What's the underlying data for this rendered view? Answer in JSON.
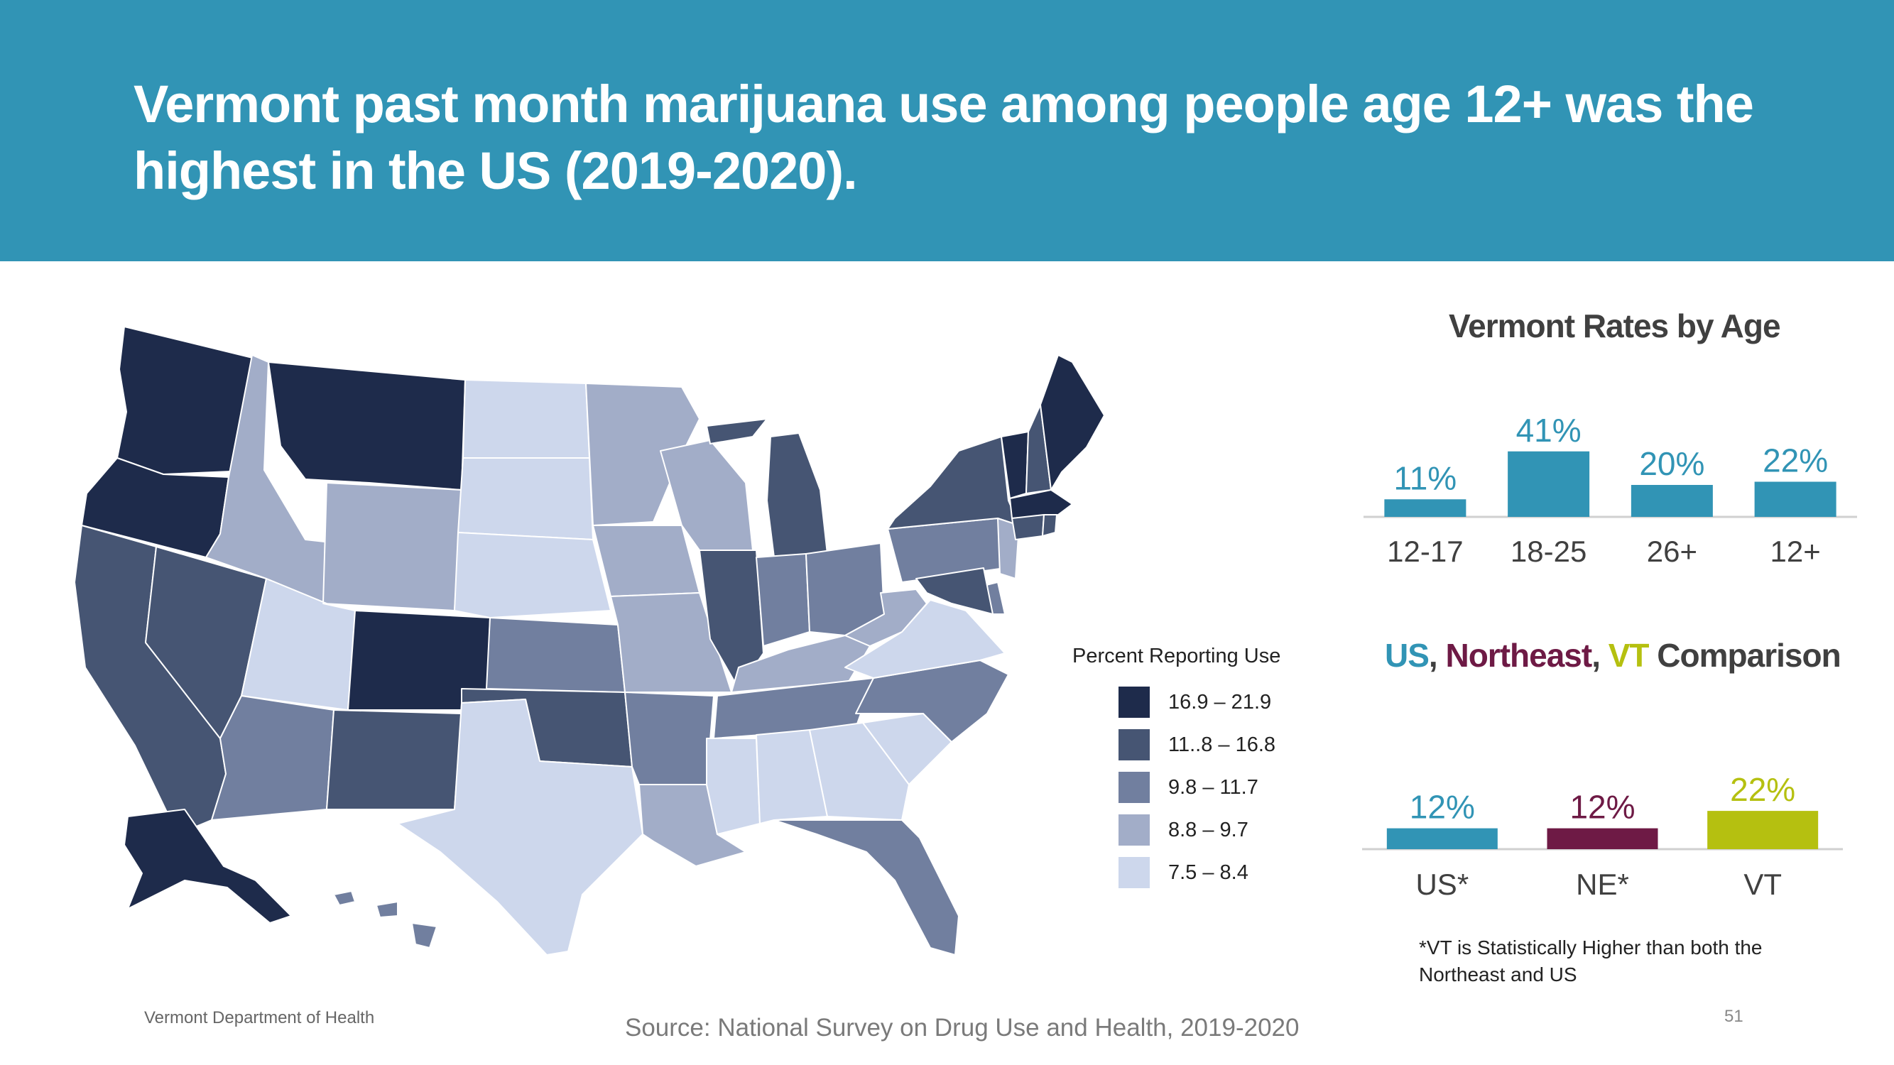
{
  "slide": {
    "title": "Vermont past month marijuana use among people age 12+ was the highest in the US (2019-2020).",
    "footer_left": "Vermont Department of Health",
    "footer_source": "Source: National Survey on Drug Use and Health, 2019-2020",
    "page_number": "51",
    "note": "*VT is Statistically Higher than both the Northeast and US"
  },
  "colors": {
    "header": "#3194b5",
    "bar_blue": "#3194b5",
    "northeast": "#6e1a45",
    "vt": "#b5c010",
    "bin1": "#1e2b4b",
    "bin2": "#465573",
    "bin3": "#717f9f",
    "bin4": "#a2adc8",
    "bin5": "#cdd7ec"
  },
  "legend": {
    "title": "Percent Reporting  Use",
    "items": [
      {
        "label": "16.9 – 21.9",
        "color": "#1e2b4b"
      },
      {
        "label": "11..8 – 16.8",
        "color": "#465573"
      },
      {
        "label": "9.8 – 11.7",
        "color": "#717f9f"
      },
      {
        "label": "8.8 – 9.7",
        "color": "#a2adc8"
      },
      {
        "label": "7.5 – 8.4",
        "color": "#cdd7ec"
      }
    ]
  },
  "chart_data": [
    {
      "type": "bar",
      "title": "Vermont Rates by Age",
      "categories": [
        "12-17",
        "18-25",
        "26+",
        "12+"
      ],
      "values": [
        11,
        41,
        20,
        22
      ],
      "data_labels": [
        "11%",
        "41%",
        "20%",
        "22%"
      ],
      "colors": [
        "#3194b5",
        "#3194b5",
        "#3194b5",
        "#3194b5"
      ]
    },
    {
      "type": "bar",
      "title_parts": [
        {
          "text": "US",
          "color": "#3194b5"
        },
        {
          "text": ", ",
          "color": "#404040"
        },
        {
          "text": "Northeast",
          "color": "#6e1a45"
        },
        {
          "text": ", ",
          "color": "#404040"
        },
        {
          "text": "VT",
          "color": "#b5c010"
        },
        {
          "text": " Comparison",
          "color": "#404040"
        }
      ],
      "categories": [
        "US*",
        "NE*",
        "VT"
      ],
      "values": [
        12,
        12,
        22
      ],
      "data_labels": [
        "12%",
        "12%",
        "22%"
      ],
      "colors": [
        "#3194b5",
        "#6e1a45",
        "#b5c010"
      ]
    },
    {
      "type": "choropleth",
      "regions": [
        {
          "state": "WA",
          "bin": 1
        },
        {
          "state": "OR",
          "bin": 1
        },
        {
          "state": "CA",
          "bin": 2
        },
        {
          "state": "NV",
          "bin": 2
        },
        {
          "state": "ID",
          "bin": 4
        },
        {
          "state": "MT",
          "bin": 1
        },
        {
          "state": "WY",
          "bin": 4
        },
        {
          "state": "UT",
          "bin": 5
        },
        {
          "state": "CO",
          "bin": 1
        },
        {
          "state": "AZ",
          "bin": 3
        },
        {
          "state": "NM",
          "bin": 2
        },
        {
          "state": "ND",
          "bin": 5
        },
        {
          "state": "SD",
          "bin": 5
        },
        {
          "state": "NE",
          "bin": 5
        },
        {
          "state": "KS",
          "bin": 3
        },
        {
          "state": "OK",
          "bin": 2
        },
        {
          "state": "TX",
          "bin": 5
        },
        {
          "state": "MN",
          "bin": 4
        },
        {
          "state": "IA",
          "bin": 4
        },
        {
          "state": "MO",
          "bin": 4
        },
        {
          "state": "AR",
          "bin": 3
        },
        {
          "state": "LA",
          "bin": 4
        },
        {
          "state": "WI",
          "bin": 4
        },
        {
          "state": "IL",
          "bin": 2
        },
        {
          "state": "MI",
          "bin": 2
        },
        {
          "state": "IN",
          "bin": 3
        },
        {
          "state": "OH",
          "bin": 3
        },
        {
          "state": "KY",
          "bin": 4
        },
        {
          "state": "TN",
          "bin": 3
        },
        {
          "state": "MS",
          "bin": 5
        },
        {
          "state": "AL",
          "bin": 5
        },
        {
          "state": "GA",
          "bin": 5
        },
        {
          "state": "FL",
          "bin": 3
        },
        {
          "state": "SC",
          "bin": 5
        },
        {
          "state": "NC",
          "bin": 3
        },
        {
          "state": "VA",
          "bin": 5
        },
        {
          "state": "WV",
          "bin": 4
        },
        {
          "state": "PA",
          "bin": 3
        },
        {
          "state": "NY",
          "bin": 2
        },
        {
          "state": "NJ",
          "bin": 4
        },
        {
          "state": "DE",
          "bin": 3
        },
        {
          "state": "MD",
          "bin": 2
        },
        {
          "state": "VT",
          "bin": 1
        },
        {
          "state": "NH",
          "bin": 2
        },
        {
          "state": "ME",
          "bin": 1
        },
        {
          "state": "MA",
          "bin": 1
        },
        {
          "state": "CT",
          "bin": 2
        },
        {
          "state": "RI",
          "bin": 2
        },
        {
          "state": "AK",
          "bin": 1
        },
        {
          "state": "HI",
          "bin": 3
        }
      ]
    }
  ]
}
